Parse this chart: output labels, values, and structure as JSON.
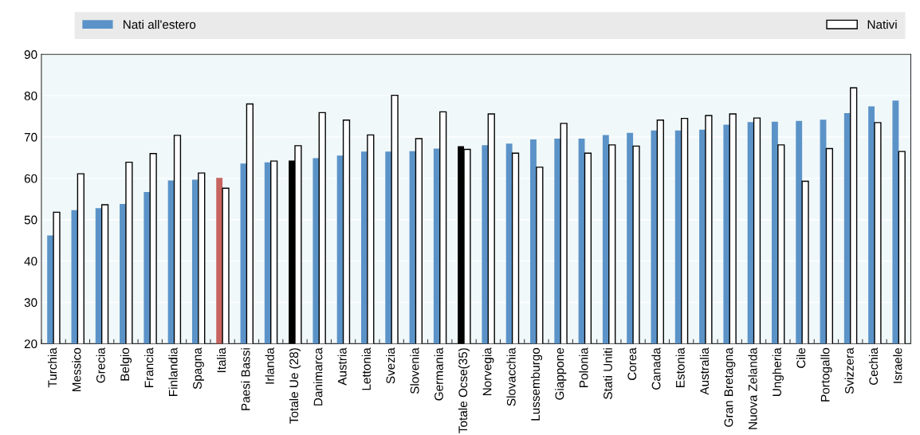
{
  "chart_data": {
    "type": "bar",
    "categories": [
      "Turchia",
      "Messico",
      "Grecia",
      "Belgio",
      "Francia",
      "Finlandia",
      "Spagna",
      "Italia",
      "Paesi Bassi",
      "Irlanda",
      "Totale Ue (28)",
      "Danimarca",
      "Austria",
      "Lettonia",
      "Svezia",
      "Slovenia",
      "Germania",
      "Totale Ocse(35)",
      "Norvegia",
      "Slovacchia",
      "Lussemburgo",
      "Giappone",
      "Polonia",
      "Stati Uniti",
      "Corea",
      "Canada",
      "Estonia",
      "Australia",
      "Gran Bretagna",
      "Nuova Zelanda",
      "Ungheria",
      "Cile",
      "Portogallo",
      "Svizzera",
      "Cechia",
      "Israele"
    ],
    "series": [
      {
        "name": "Nati all'estero",
        "color": "#5b93c8",
        "colors": [
          "#5b93c8",
          "#5b93c8",
          "#5b93c8",
          "#5b93c8",
          "#5b93c8",
          "#5b93c8",
          "#5b93c8",
          "#c8645f",
          "#5b93c8",
          "#5b93c8",
          "#000000",
          "#5b93c8",
          "#5b93c8",
          "#5b93c8",
          "#5b93c8",
          "#5b93c8",
          "#5b93c8",
          "#000000",
          "#5b93c8",
          "#5b93c8",
          "#5b93c8",
          "#5b93c8",
          "#5b93c8",
          "#5b93c8",
          "#5b93c8",
          "#5b93c8",
          "#5b93c8",
          "#5b93c8",
          "#5b93c8",
          "#5b93c8",
          "#5b93c8",
          "#5b93c8",
          "#5b93c8",
          "#5b93c8",
          "#5b93c8",
          "#5b93c8"
        ],
        "values": [
          46.2,
          52.3,
          52.8,
          53.8,
          56.7,
          59.5,
          59.7,
          60.1,
          63.6,
          63.9,
          64.3,
          64.9,
          65.5,
          66.5,
          66.5,
          66.6,
          67.2,
          67.8,
          68.0,
          68.4,
          69.4,
          69.6,
          69.6,
          70.5,
          71.0,
          71.6,
          71.6,
          71.8,
          73.0,
          73.6,
          73.7,
          73.9,
          74.2,
          75.8,
          77.4,
          78.8
        ]
      },
      {
        "name": "Nativi",
        "color": "#ffffff",
        "values": [
          51.8,
          61.1,
          53.6,
          63.9,
          66.0,
          70.4,
          61.3,
          57.6,
          78.0,
          64.2,
          67.9,
          75.9,
          74.1,
          70.5,
          80.1,
          69.6,
          76.1,
          67.0,
          75.6,
          66.1,
          62.7,
          73.3,
          66.1,
          68.1,
          67.8,
          74.1,
          74.5,
          75.2,
          75.6,
          74.6,
          68.1,
          59.3,
          67.2,
          81.9,
          73.5,
          66.5
        ]
      }
    ],
    "ylim": [
      20,
      90
    ],
    "yticks": [
      20,
      30,
      40,
      50,
      60,
      70,
      80,
      90
    ],
    "grid": "y",
    "legend": "top"
  }
}
